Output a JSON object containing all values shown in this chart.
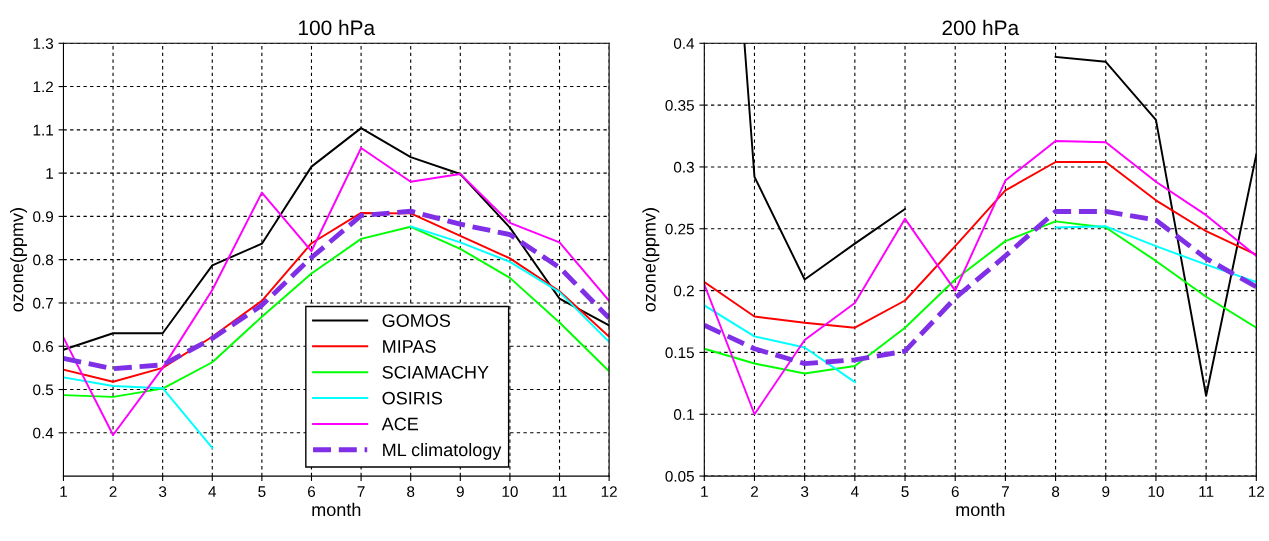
{
  "chart_data": [
    {
      "type": "line",
      "title": "100 hPa",
      "xlabel": "month",
      "ylabel": "ozone(ppmv)",
      "x": [
        1,
        2,
        3,
        4,
        5,
        6,
        7,
        8,
        9,
        10,
        11,
        12
      ],
      "xlim": [
        1,
        12
      ],
      "xticks": [
        1,
        2,
        3,
        4,
        5,
        6,
        7,
        8,
        9,
        10,
        11,
        12
      ],
      "ylim": [
        0.3,
        1.3
      ],
      "yticks": [
        0.4,
        0.5,
        0.6,
        0.7,
        0.8,
        0.9,
        1,
        1.1,
        1.2,
        1.3
      ],
      "grid": true,
      "legend": "bottom",
      "marker": "none",
      "series": [
        {
          "name": "GOMOS",
          "color": "#000000",
          "values": [
            0.592,
            0.63,
            0.63,
            0.787,
            0.837,
            1.015,
            1.104,
            1.037,
            0.998,
            0.874,
            0.71,
            0.648
          ]
        },
        {
          "name": "MIPAS",
          "color": "#ff0000",
          "values": [
            0.546,
            0.518,
            0.55,
            0.622,
            0.705,
            0.838,
            0.908,
            0.907,
            0.855,
            0.803,
            0.727,
            0.622
          ]
        },
        {
          "name": "SCIAMACHY",
          "color": "#00ff00",
          "values": [
            0.487,
            0.483,
            0.502,
            0.563,
            0.668,
            0.768,
            0.848,
            0.876,
            0.825,
            0.758,
            0.655,
            0.542
          ]
        },
        {
          "name": "OSIRIS",
          "color": "#00ffff",
          "values": [
            0.528,
            0.508,
            0.503,
            0.365,
            null,
            null,
            null,
            0.877,
            0.84,
            0.795,
            0.725,
            0.61
          ]
        },
        {
          "name": "ACE",
          "color": "#ff00ff",
          "values": [
            0.62,
            0.395,
            0.55,
            0.73,
            0.955,
            0.82,
            1.058,
            0.98,
            0.998,
            0.885,
            0.84,
            0.705
          ]
        },
        {
          "name": "ML climatology",
          "color": "#7f2fe6",
          "line_style": "dashed",
          "values": [
            0.572,
            0.548,
            0.557,
            0.618,
            0.695,
            0.805,
            0.902,
            0.912,
            0.882,
            0.858,
            0.782,
            0.665
          ]
        }
      ]
    },
    {
      "type": "line",
      "title": "200 hPa",
      "xlabel": "month",
      "ylabel": "ozone(ppmv)",
      "x": [
        1,
        2,
        3,
        4,
        5,
        6,
        7,
        8,
        9,
        10,
        11,
        12
      ],
      "xlim": [
        1,
        12
      ],
      "xticks": [
        1,
        2,
        3,
        4,
        5,
        6,
        7,
        8,
        9,
        10,
        11,
        12
      ],
      "ylim": [
        0.05,
        0.4
      ],
      "yticks": [
        0.05,
        0.1,
        0.15,
        0.2,
        0.25,
        0.3,
        0.35,
        0.4
      ],
      "grid": true,
      "marker": "none",
      "series": [
        {
          "color": "#000000",
          "x": [
            1.8,
            2,
            3,
            4,
            5,
            6,
            7,
            8,
            9,
            10,
            11,
            12
          ],
          "values": [
            0.4,
            0.292,
            0.209,
            0.238,
            0.266,
            null,
            null,
            0.389,
            0.385,
            0.338,
            0.115,
            0.31
          ]
        },
        {
          "color": "#ff0000",
          "values": [
            0.207,
            0.179,
            0.174,
            0.17,
            0.192,
            0.236,
            0.281,
            0.304,
            0.304,
            0.273,
            0.248,
            0.229
          ]
        },
        {
          "color": "#00ff00",
          "values": [
            0.153,
            0.141,
            0.133,
            0.139,
            0.17,
            0.209,
            0.24,
            0.256,
            0.251,
            0.224,
            0.195,
            0.17
          ]
        },
        {
          "color": "#00ffff",
          "values": [
            0.188,
            0.163,
            0.154,
            0.126,
            null,
            null,
            null,
            0.251,
            0.252,
            0.236,
            0.221,
            0.207
          ]
        },
        {
          "color": "#ff00ff",
          "values": [
            0.205,
            0.1,
            0.16,
            0.19,
            0.258,
            0.2,
            0.289,
            0.321,
            0.32,
            0.288,
            0.261,
            0.228
          ]
        },
        {
          "color": "#7f2fe6",
          "line_style": "dashed",
          "values": [
            0.172,
            0.153,
            0.141,
            0.144,
            0.151,
            0.194,
            0.228,
            0.264,
            0.264,
            0.257,
            0.226,
            0.203
          ]
        }
      ]
    }
  ]
}
